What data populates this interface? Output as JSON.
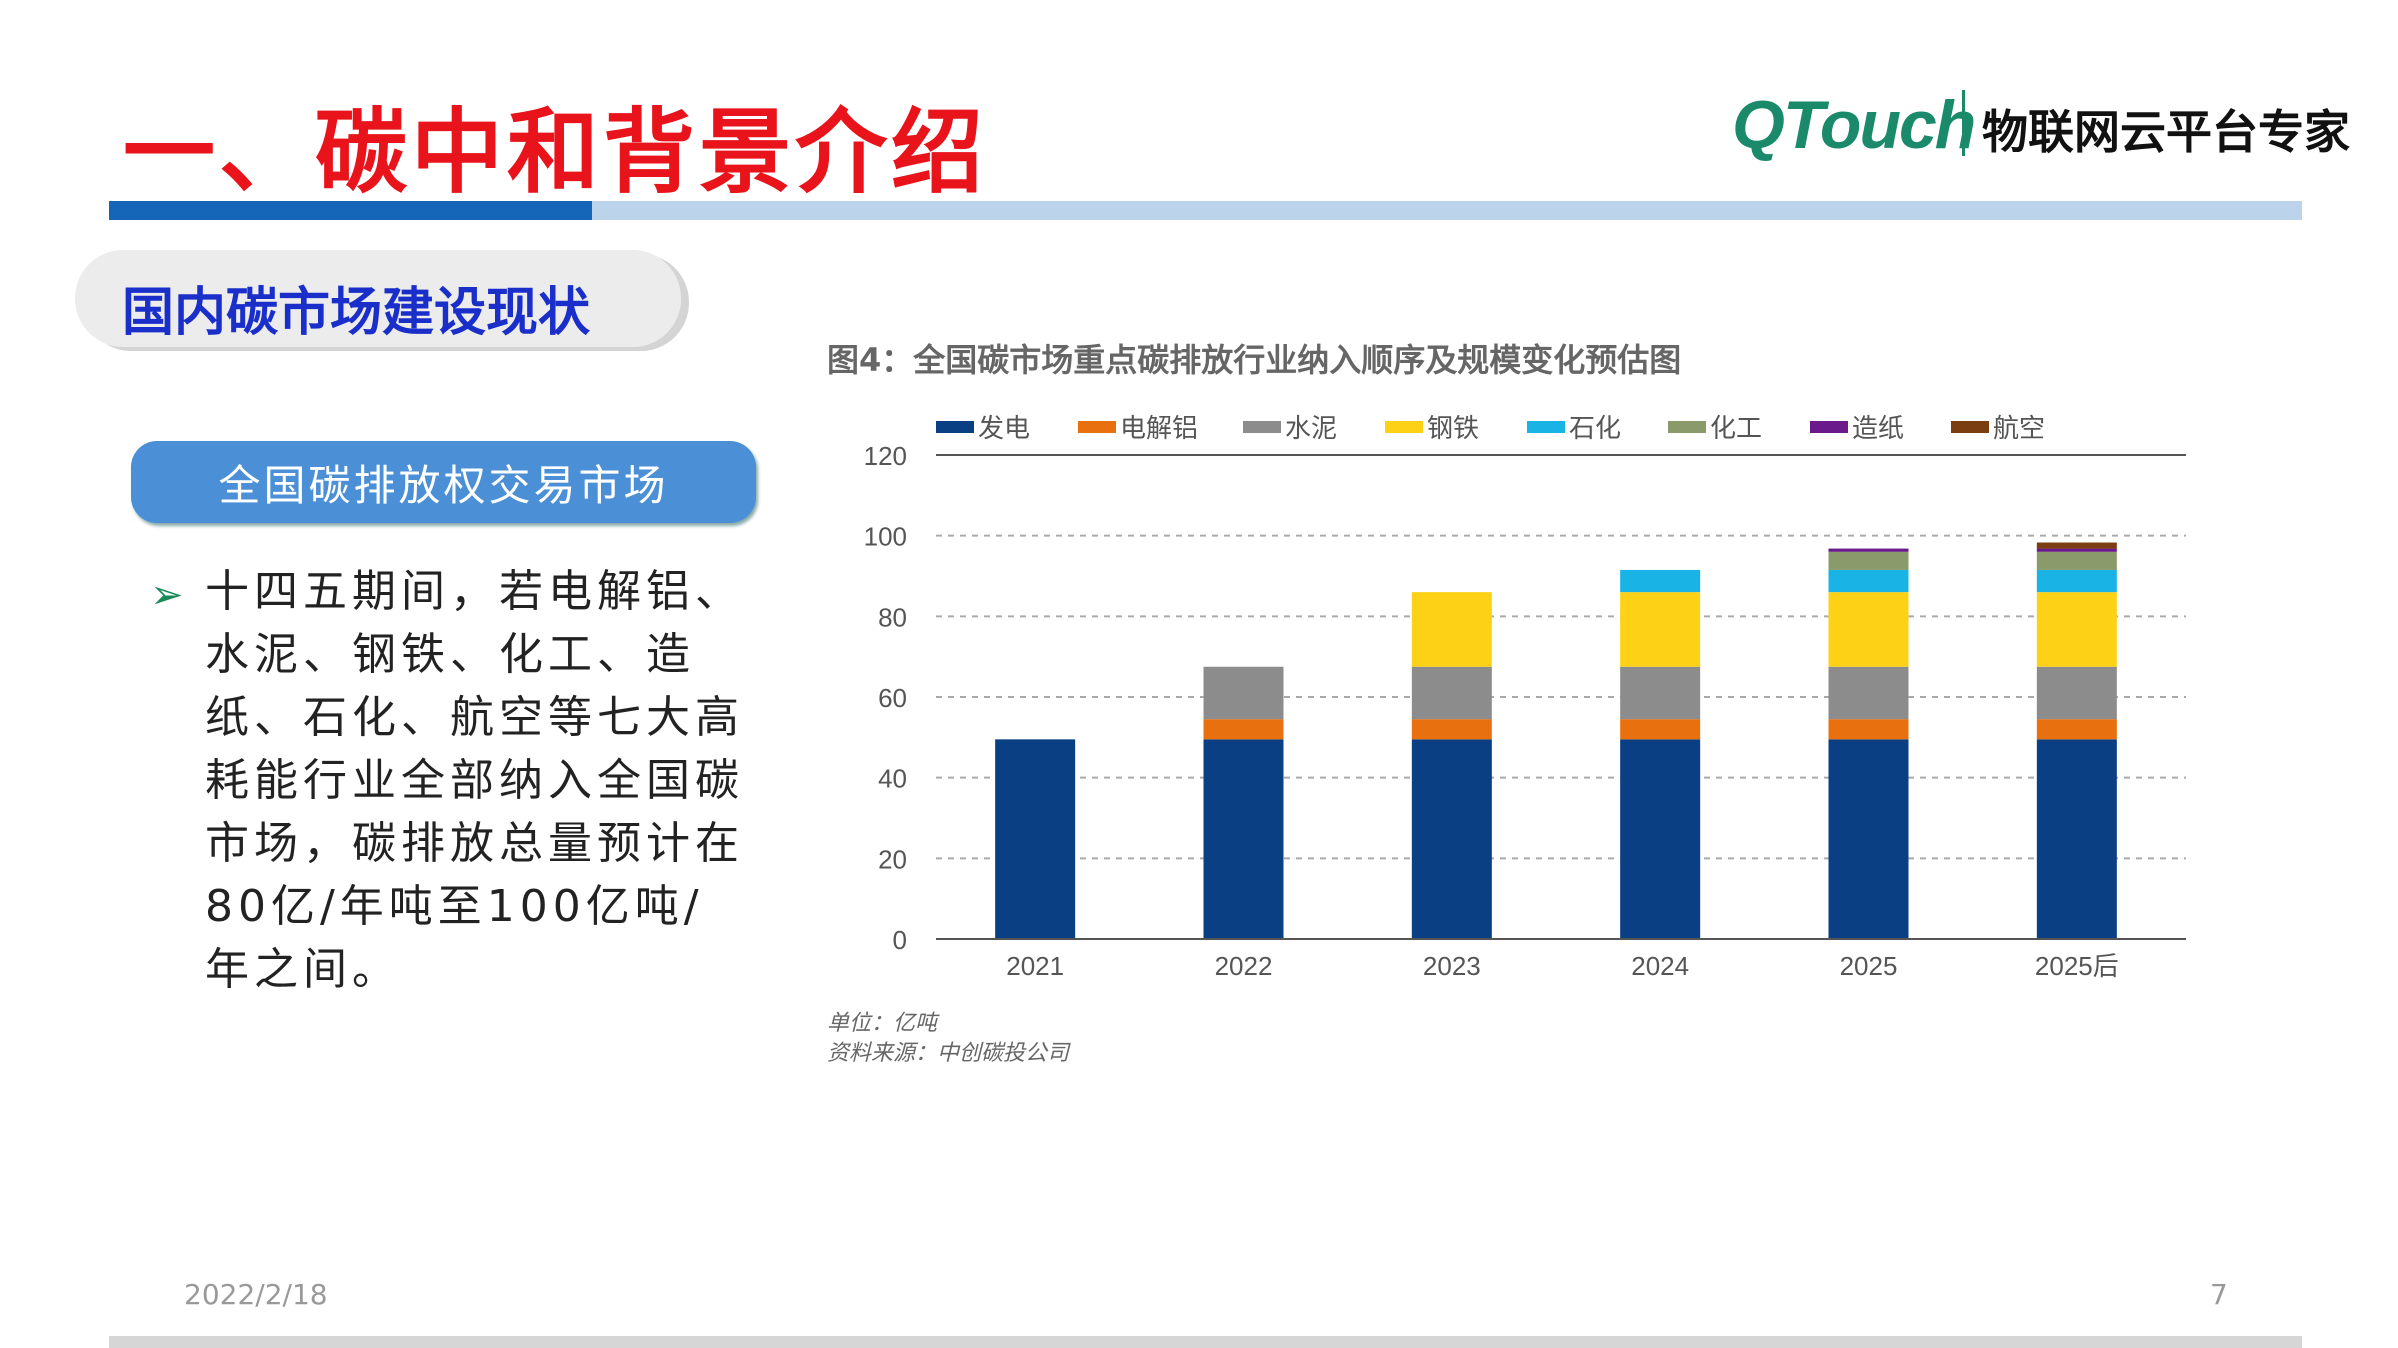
{
  "header": {
    "title": "一、碳中和背景介绍",
    "logo_text": "QTouch",
    "slogan": "物联网云平台专家"
  },
  "section": {
    "title": "国内碳市场建设现状",
    "button_label": "全国碳排放权交易市场"
  },
  "bullet": {
    "text": "十四五期间，若电解铝、水泥、钢铁、化工、造纸、石化、航空等七大高耗能行业全部纳入全国碳市场，碳排放总量预计在80亿/年吨至100亿吨/年之间。"
  },
  "footer": {
    "date": "2022/2/18",
    "page": "7"
  },
  "chart_data": {
    "type": "bar",
    "stacked": true,
    "title": "图4：全国碳市场重点碳排放行业纳入顺序及规模变化预估图",
    "categories": [
      "2021",
      "2022",
      "2023",
      "2024",
      "2025",
      "2025后"
    ],
    "ylim": [
      0,
      120
    ],
    "yticks": [
      "0",
      "20",
      "40",
      "60",
      "80",
      "100",
      "120"
    ],
    "grid": true,
    "legend_position": "top",
    "unit_note": "单位：亿吨",
    "source_note": "资料来源：中创碳投公司",
    "series": [
      {
        "name": "发电",
        "color": "#0a3f84",
        "values": [
          49.5,
          49.5,
          49.5,
          49.5,
          49.5,
          49.5
        ]
      },
      {
        "name": "电解铝",
        "color": "#e8700f",
        "values": [
          0,
          5,
          5,
          5,
          5,
          5
        ]
      },
      {
        "name": "水泥",
        "color": "#8c8c8c",
        "values": [
          0,
          13,
          13,
          13,
          13,
          13
        ]
      },
      {
        "name": "钢铁",
        "color": "#fcd116",
        "values": [
          0,
          0,
          18.5,
          18.5,
          18.5,
          18.5
        ]
      },
      {
        "name": "石化",
        "color": "#1ab3e6",
        "values": [
          0,
          0,
          0,
          5.5,
          5.5,
          5.5
        ]
      },
      {
        "name": "化工",
        "color": "#8a9a6a",
        "values": [
          0,
          0,
          0,
          0,
          4.5,
          4.5
        ]
      },
      {
        "name": "造纸",
        "color": "#6a1a8a",
        "values": [
          0,
          0,
          0,
          0,
          0.8,
          0.8
        ]
      },
      {
        "name": "航空",
        "color": "#7a3e10",
        "values": [
          0,
          0,
          0,
          0,
          0,
          1.5
        ]
      }
    ]
  }
}
